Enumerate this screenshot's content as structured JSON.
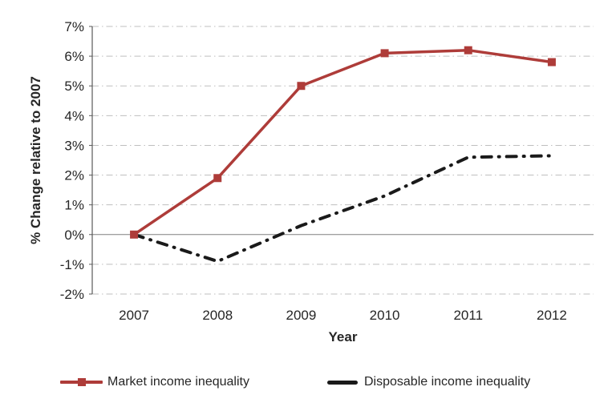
{
  "chart_data": {
    "type": "line",
    "title": "",
    "categories": [
      "2007",
      "2008",
      "2009",
      "2010",
      "2011",
      "2012"
    ],
    "series": [
      {
        "name": "Market income inequality",
        "color": "#AE3C39",
        "line_style": "solid",
        "marker": "square",
        "values": [
          0,
          1.9,
          5.0,
          6.1,
          6.2,
          5.8
        ]
      },
      {
        "name": "Disposable income inequality",
        "color": "#1A1A1A",
        "line_style": "dash-dot",
        "marker": "none",
        "values": [
          0,
          -0.9,
          0.3,
          1.3,
          2.6,
          2.65
        ]
      }
    ],
    "xlabel": "Year",
    "ylabel": "% Change relative to 2007",
    "ylim": [
      -2,
      7
    ],
    "ytick_step": 1,
    "ytick_labels": [
      "7%",
      "6%",
      "5%",
      "4%",
      "3%",
      "2%",
      "1%",
      "0%",
      "-1%",
      "-2%"
    ],
    "xtick_labels": [
      "2007",
      "2008",
      "2009",
      "2010",
      "2011",
      "2012"
    ],
    "grid": {
      "horizontal": true,
      "vertical": false,
      "style": "dash-dot",
      "color": "#BFBFBF",
      "zero_line_color": "#808080",
      "axis_line_color": "#595959"
    },
    "legend_position": "bottom"
  }
}
